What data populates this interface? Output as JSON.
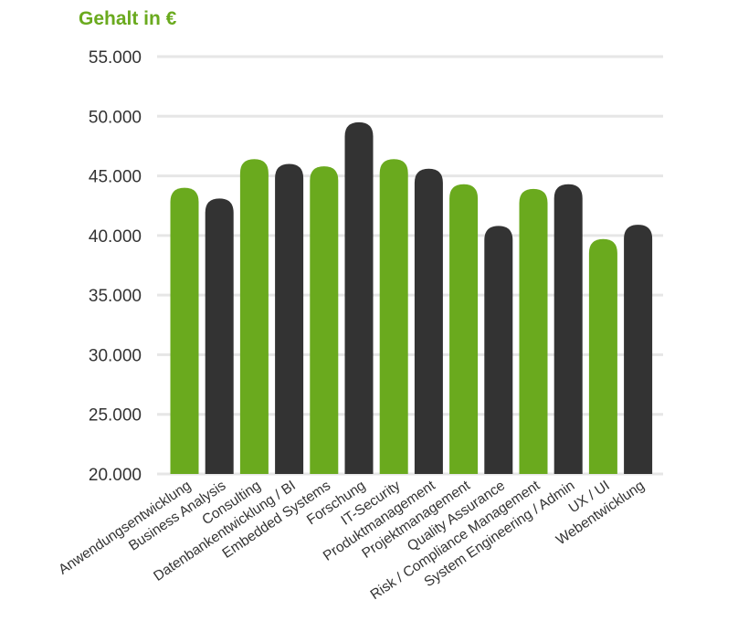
{
  "chart_data": {
    "type": "bar",
    "title": "Gehalt in €",
    "ylabel": "",
    "xlabel": "",
    "ylim": [
      20000,
      55000
    ],
    "yticks": [
      20000,
      25000,
      30000,
      35000,
      40000,
      45000,
      50000,
      55000
    ],
    "ytick_labels": [
      "20.000",
      "25.000",
      "30.000",
      "35.000",
      "40.000",
      "45.000",
      "50.000",
      "55.000"
    ],
    "grid": true,
    "categories": [
      "Anwendungsentwicklung",
      "Business Analysis",
      "Consulting",
      "Datenbankentwicklung / BI",
      "Embedded Systems",
      "Forschung",
      "IT-Security",
      "Produktmanagement",
      "Projektmanagement",
      "Quality Assurance",
      "Risk / Compliance  Management",
      "System Engineering / Admin",
      "UX / UI",
      "Webentwicklung"
    ],
    "values": [
      44000,
      43100,
      46400,
      46000,
      45800,
      49500,
      46400,
      45600,
      44300,
      40800,
      43900,
      44300,
      39700,
      40900
    ],
    "bar_colors": [
      "#6aaa1e",
      "#333333",
      "#6aaa1e",
      "#333333",
      "#6aaa1e",
      "#333333",
      "#6aaa1e",
      "#333333",
      "#6aaa1e",
      "#333333",
      "#6aaa1e",
      "#333333",
      "#6aaa1e",
      "#333333"
    ],
    "colors": {
      "accent": "#6aaa1e",
      "dark": "#333333",
      "grid": "#e6e6e6"
    }
  }
}
